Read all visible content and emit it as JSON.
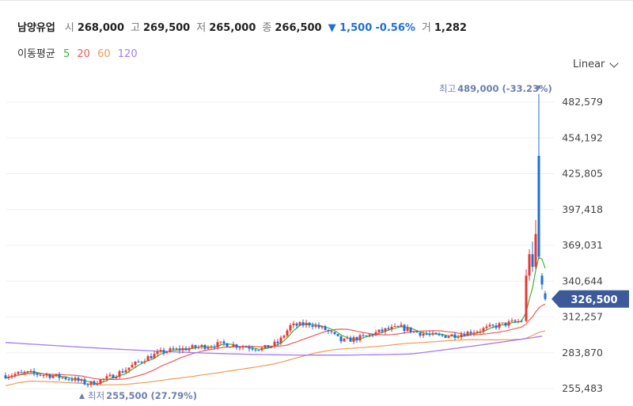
{
  "header": {
    "name": "남양유업",
    "open_label": "시",
    "open": "268,000",
    "high_label": "고",
    "high": "269,500",
    "low_label": "저",
    "low": "265,000",
    "close_label": "종",
    "close": "266,500",
    "change": "▼ 1,500",
    "change_pct": "-0.56%",
    "volume_label": "거",
    "volume": "1,282"
  },
  "moving_average": {
    "title": "이동평균",
    "periods": [
      {
        "label": "5",
        "color": "#45b035"
      },
      {
        "label": "20",
        "color": "#ef5a5a"
      },
      {
        "label": "60",
        "color": "#f29a55"
      },
      {
        "label": "120",
        "color": "#a37cf0"
      }
    ]
  },
  "scale_selector": {
    "label": "Linear"
  },
  "chart_data": {
    "type": "candlestick",
    "y_ticks": [
      "482,579",
      "454,192",
      "425,805",
      "397,418",
      "369,031",
      "340,644",
      "312,257",
      "283,870",
      "255,483"
    ],
    "current_price": "326,500",
    "max_annotation": {
      "label": "최고",
      "value": "489,000 (-33.23%)"
    },
    "min_annotation": {
      "label": "최저",
      "value": "255,500 (27.79%)"
    },
    "colors": {
      "up": "#e53935",
      "down": "#1e6fd9",
      "ma5": "#45b035",
      "ma20": "#ef5a5a",
      "ma60": "#f29a55",
      "ma120": "#a37cf0",
      "current": "#3c5a9a",
      "annotation": "#6b7fb0"
    },
    "candles_high_section_y": [
      355000,
      362000,
      372000,
      389000,
      489000,
      445000,
      348000,
      346000,
      332000,
      328000
    ]
  }
}
